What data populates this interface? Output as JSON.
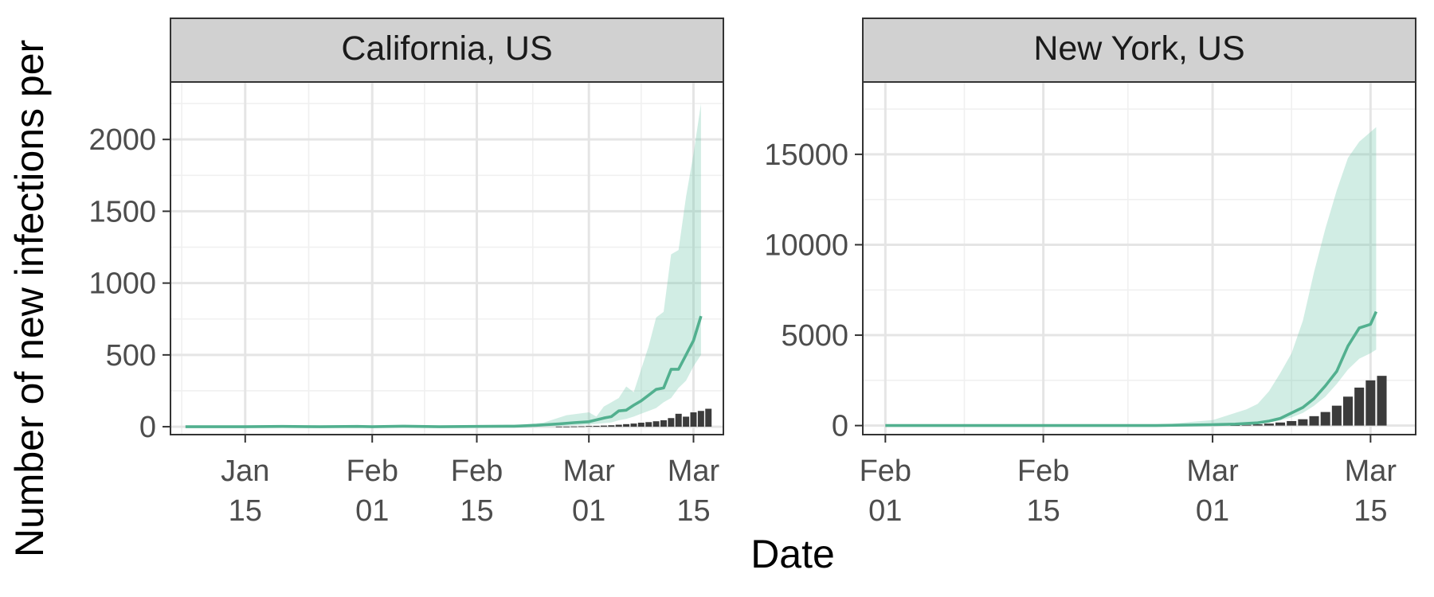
{
  "chart_data": {
    "type": "bar",
    "xlabel": "Date",
    "ylabel": "Number of new infections per",
    "colors": {
      "band": "#66c2a5",
      "median": "#52b08f",
      "bars": "#3b3b3b"
    },
    "panels": [
      {
        "title": "California, US",
        "xlim": [
          "2020-01-05",
          "2020-03-19"
        ],
        "ylim": [
          -55,
          2400
        ],
        "x_ticks": [
          {
            "date": "2020-01-15",
            "label": [
              "Jan",
              "15"
            ]
          },
          {
            "date": "2020-02-01",
            "label": [
              "Feb",
              "01"
            ]
          },
          {
            "date": "2020-02-15",
            "label": [
              "Feb",
              "15"
            ]
          },
          {
            "date": "2020-03-01",
            "label": [
              "Mar",
              "01"
            ]
          },
          {
            "date": "2020-03-15",
            "label": [
              "Mar",
              "15"
            ]
          }
        ],
        "y_ticks": [
          0,
          500,
          1000,
          1500,
          2000
        ],
        "y_tick_labels": [
          "0",
          "500",
          "1000",
          "1500",
          "2000"
        ],
        "median_series": [
          [
            "2020-01-07",
            0
          ],
          [
            "2020-01-15",
            0
          ],
          [
            "2020-01-20",
            2
          ],
          [
            "2020-01-25",
            0
          ],
          [
            "2020-01-30",
            2
          ],
          [
            "2020-02-01",
            0
          ],
          [
            "2020-02-05",
            4
          ],
          [
            "2020-02-10",
            0
          ],
          [
            "2020-02-15",
            2
          ],
          [
            "2020-02-20",
            4
          ],
          [
            "2020-02-23",
            10
          ],
          [
            "2020-02-26",
            20
          ],
          [
            "2020-02-28",
            28
          ],
          [
            "2020-03-01",
            35
          ],
          [
            "2020-03-03",
            60
          ],
          [
            "2020-03-04",
            70
          ],
          [
            "2020-03-05",
            110
          ],
          [
            "2020-03-06",
            115
          ],
          [
            "2020-03-07",
            150
          ],
          [
            "2020-03-08",
            180
          ],
          [
            "2020-03-09",
            220
          ],
          [
            "2020-03-10",
            260
          ],
          [
            "2020-03-11",
            270
          ],
          [
            "2020-03-12",
            400
          ],
          [
            "2020-03-13",
            400
          ],
          [
            "2020-03-14",
            500
          ],
          [
            "2020-03-15",
            600
          ],
          [
            "2020-03-16",
            770
          ]
        ],
        "band_upper": [
          [
            "2020-01-07",
            0
          ],
          [
            "2020-02-15",
            4
          ],
          [
            "2020-02-20",
            10
          ],
          [
            "2020-02-24",
            30
          ],
          [
            "2020-02-27",
            80
          ],
          [
            "2020-03-01",
            100
          ],
          [
            "2020-03-02",
            70
          ],
          [
            "2020-03-03",
            140
          ],
          [
            "2020-03-05",
            200
          ],
          [
            "2020-03-06",
            280
          ],
          [
            "2020-03-07",
            240
          ],
          [
            "2020-03-08",
            400
          ],
          [
            "2020-03-09",
            560
          ],
          [
            "2020-03-10",
            760
          ],
          [
            "2020-03-11",
            800
          ],
          [
            "2020-03-12",
            1200
          ],
          [
            "2020-03-13",
            1230
          ],
          [
            "2020-03-14",
            1600
          ],
          [
            "2020-03-15",
            1900
          ],
          [
            "2020-03-16",
            2250
          ]
        ],
        "band_lower": [
          [
            "2020-03-16",
            500
          ],
          [
            "2020-03-15",
            420
          ],
          [
            "2020-03-14",
            320
          ],
          [
            "2020-03-13",
            270
          ],
          [
            "2020-03-12",
            200
          ],
          [
            "2020-03-11",
            170
          ],
          [
            "2020-03-10",
            130
          ],
          [
            "2020-03-09",
            110
          ],
          [
            "2020-03-08",
            90
          ],
          [
            "2020-03-07",
            70
          ],
          [
            "2020-03-06",
            55
          ],
          [
            "2020-03-05",
            45
          ],
          [
            "2020-03-04",
            30
          ],
          [
            "2020-03-03",
            25
          ],
          [
            "2020-03-01",
            15
          ],
          [
            "2020-02-26",
            5
          ],
          [
            "2020-02-20",
            0
          ],
          [
            "2020-01-07",
            0
          ]
        ],
        "bars": [
          [
            "2020-02-26",
            1
          ],
          [
            "2020-02-27",
            1
          ],
          [
            "2020-02-28",
            2
          ],
          [
            "2020-02-29",
            3
          ],
          [
            "2020-03-01",
            5
          ],
          [
            "2020-03-02",
            6
          ],
          [
            "2020-03-03",
            8
          ],
          [
            "2020-03-04",
            10
          ],
          [
            "2020-03-05",
            14
          ],
          [
            "2020-03-06",
            18
          ],
          [
            "2020-03-07",
            22
          ],
          [
            "2020-03-08",
            28
          ],
          [
            "2020-03-09",
            32
          ],
          [
            "2020-03-10",
            38
          ],
          [
            "2020-03-11",
            45
          ],
          [
            "2020-03-12",
            60
          ],
          [
            "2020-03-13",
            90
          ],
          [
            "2020-03-14",
            70
          ],
          [
            "2020-03-15",
            100
          ],
          [
            "2020-03-16",
            110
          ],
          [
            "2020-03-17",
            125
          ]
        ]
      },
      {
        "title": "New York, US",
        "xlim": [
          "2020-01-30",
          "2020-03-19"
        ],
        "ylim": [
          -500,
          19000
        ],
        "x_ticks": [
          {
            "date": "2020-02-01",
            "label": [
              "Feb",
              "01"
            ]
          },
          {
            "date": "2020-02-15",
            "label": [
              "Feb",
              "15"
            ]
          },
          {
            "date": "2020-03-01",
            "label": [
              "Mar",
              "01"
            ]
          },
          {
            "date": "2020-03-15",
            "label": [
              "Mar",
              "15"
            ]
          }
        ],
        "y_ticks": [
          0,
          5000,
          10000,
          15000
        ],
        "y_tick_labels": [
          "0",
          "5000",
          "10000",
          "15000"
        ],
        "median_series": [
          [
            "2020-02-01",
            0
          ],
          [
            "2020-02-15",
            0
          ],
          [
            "2020-02-25",
            0
          ],
          [
            "2020-03-01",
            50
          ],
          [
            "2020-03-03",
            80
          ],
          [
            "2020-03-05",
            150
          ],
          [
            "2020-03-06",
            250
          ],
          [
            "2020-03-07",
            400
          ],
          [
            "2020-03-08",
            700
          ],
          [
            "2020-03-09",
            1000
          ],
          [
            "2020-03-10",
            1500
          ],
          [
            "2020-03-11",
            2200
          ],
          [
            "2020-03-12",
            3000
          ],
          [
            "2020-03-13",
            4400
          ],
          [
            "2020-03-14",
            5400
          ],
          [
            "2020-03-15",
            5600
          ],
          [
            "2020-03-15.5",
            6300
          ]
        ],
        "band_upper": [
          [
            "2020-02-01",
            0
          ],
          [
            "2020-02-25",
            0
          ],
          [
            "2020-02-28",
            200
          ],
          [
            "2020-03-01",
            300
          ],
          [
            "2020-03-03",
            700
          ],
          [
            "2020-03-04",
            900
          ],
          [
            "2020-03-05",
            1200
          ],
          [
            "2020-03-06",
            1900
          ],
          [
            "2020-03-07",
            2900
          ],
          [
            "2020-03-08",
            4000
          ],
          [
            "2020-03-09",
            5800
          ],
          [
            "2020-03-10",
            8500
          ],
          [
            "2020-03-11",
            10900
          ],
          [
            "2020-03-12",
            13000
          ],
          [
            "2020-03-13",
            14800
          ],
          [
            "2020-03-14",
            15700
          ],
          [
            "2020-03-15.5",
            16500
          ]
        ],
        "band_lower": [
          [
            "2020-03-15.5",
            4200
          ],
          [
            "2020-03-15",
            4000
          ],
          [
            "2020-03-14",
            3700
          ],
          [
            "2020-03-13",
            3100
          ],
          [
            "2020-03-12",
            2300
          ],
          [
            "2020-03-11",
            1600
          ],
          [
            "2020-03-10",
            1100
          ],
          [
            "2020-03-09",
            700
          ],
          [
            "2020-03-08",
            450
          ],
          [
            "2020-03-07",
            280
          ],
          [
            "2020-03-06",
            170
          ],
          [
            "2020-03-05",
            100
          ],
          [
            "2020-03-03",
            50
          ],
          [
            "2020-03-01",
            0
          ],
          [
            "2020-02-01",
            0
          ]
        ],
        "bars": [
          [
            "2020-03-03",
            20
          ],
          [
            "2020-03-04",
            40
          ],
          [
            "2020-03-05",
            70
          ],
          [
            "2020-03-06",
            110
          ],
          [
            "2020-03-07",
            170
          ],
          [
            "2020-03-08",
            250
          ],
          [
            "2020-03-09",
            350
          ],
          [
            "2020-03-10",
            520
          ],
          [
            "2020-03-11",
            750
          ],
          [
            "2020-03-12",
            1100
          ],
          [
            "2020-03-13",
            1600
          ],
          [
            "2020-03-14",
            2100
          ],
          [
            "2020-03-15",
            2500
          ],
          [
            "2020-03-16",
            2750
          ]
        ]
      }
    ]
  }
}
